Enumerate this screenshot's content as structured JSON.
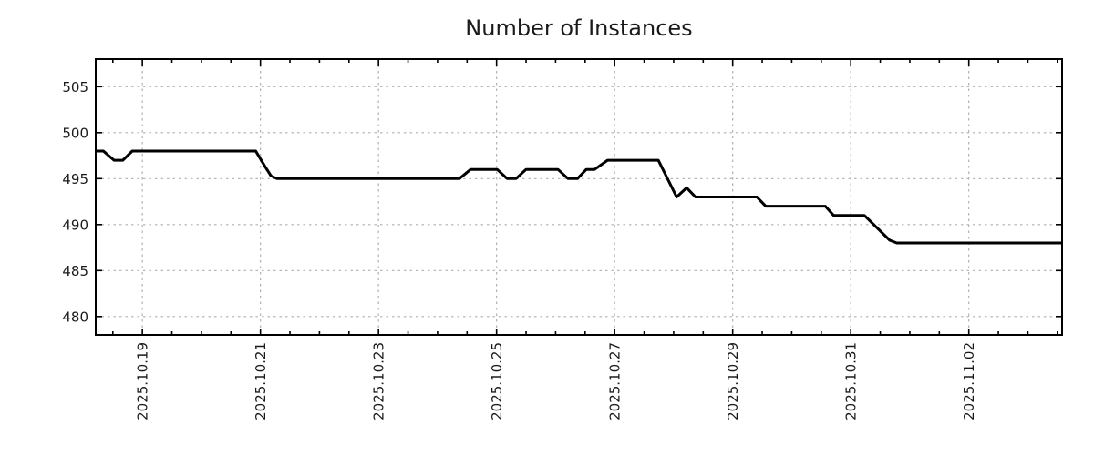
{
  "figure": {
    "background": "#ffffff"
  },
  "colors": {
    "line": "#000000",
    "grid": "#b0b0b0",
    "axis": "#000000",
    "text": "#1a1a1a",
    "background": "#ffffff"
  },
  "chart_data": {
    "type": "line",
    "title": "Number of Instances",
    "xlabel": "",
    "ylabel": "",
    "legend": null,
    "x_axis": {
      "unit": "date",
      "x_encoding": "continuous day number of Oct 2025 (32 = Nov 1, 33 = Nov 2)",
      "xlim": [
        18.21,
        34.58
      ],
      "major_ticks": [
        19,
        21,
        23,
        25,
        27,
        29,
        31,
        33
      ],
      "major_tick_labels": [
        "2025.10.19",
        "2025.10.21",
        "2025.10.23",
        "2025.10.25",
        "2025.10.27",
        "2025.10.29",
        "2025.10.31",
        "2025.11.02"
      ],
      "minor_tick_interval": 0.5,
      "tick_direction": "in",
      "ticks_on_top": true
    },
    "y_axis": {
      "ylim": [
        478,
        508
      ],
      "ticks": [
        480,
        485,
        490,
        495,
        500,
        505
      ],
      "tick_direction": "in",
      "ticks_on_right": true
    },
    "grid": {
      "show": true,
      "which": "major",
      "style": "dotted",
      "color": "#b0b0b0"
    },
    "series": [
      {
        "name": "instances",
        "color": "#000000",
        "line_width": 3,
        "x": [
          18.21,
          18.34,
          18.52,
          18.67,
          18.83,
          20.92,
          21.08,
          21.18,
          21.28,
          24.37,
          24.56,
          25.01,
          25.18,
          25.33,
          25.5,
          26.04,
          26.21,
          26.37,
          26.52,
          26.66,
          26.88,
          27.74,
          28.05,
          28.22,
          28.37,
          29.41,
          29.56,
          30.57,
          30.71,
          31.23,
          31.66,
          31.78,
          34.58
        ],
        "y": [
          498,
          498,
          497,
          497,
          498,
          498,
          496.3,
          495.3,
          495,
          495,
          496,
          496,
          495,
          495,
          496,
          496,
          495,
          495,
          496,
          496,
          497,
          497,
          493,
          494,
          493,
          493,
          492,
          492,
          491,
          491,
          488.3,
          488,
          488
        ]
      }
    ]
  }
}
